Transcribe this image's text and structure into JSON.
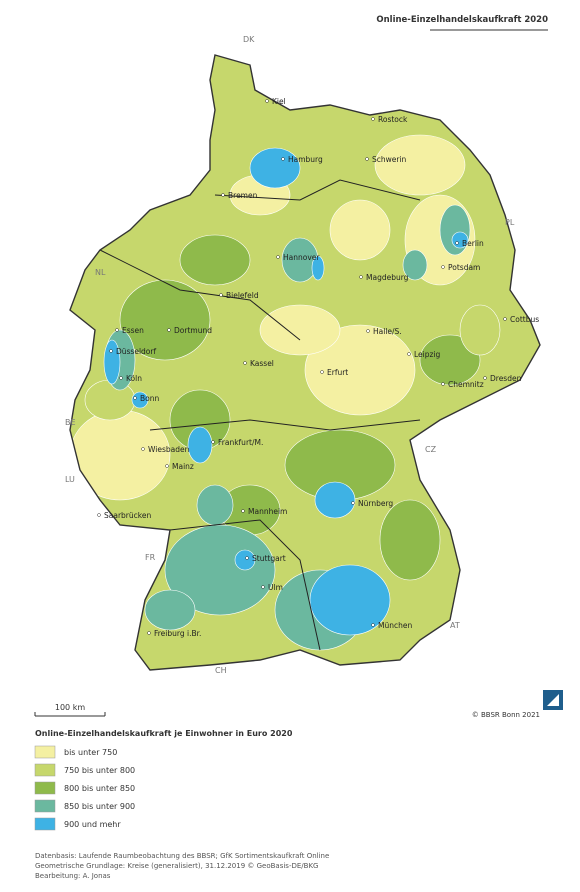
{
  "header": {
    "title": "Online-Einzelhandelskaufkraft 2020"
  },
  "map": {
    "cities": [
      "Kiel",
      "Rostock",
      "Hamburg",
      "Schwerin",
      "Bremen",
      "Berlin",
      "Hannover",
      "Potsdam",
      "Magdeburg",
      "Bielefeld",
      "Cottbus",
      "Essen",
      "Dortmund",
      "Halle/S.",
      "Düsseldorf",
      "Leipzig",
      "Kassel",
      "Erfurt",
      "Köln",
      "Chemnitz",
      "Dresden",
      "Bonn",
      "Frankfurt/M.",
      "Wiesbaden",
      "Mainz",
      "Nürnberg",
      "Saarbrücken",
      "Mannheim",
      "Stuttgart",
      "Ulm",
      "München",
      "Freiburg i.Br."
    ],
    "countries": [
      "DK",
      "PL",
      "NL",
      "BE",
      "LU",
      "CZ",
      "FR",
      "AT",
      "CH"
    ],
    "scale": "100 km",
    "copyright": "© BBSR Bonn 2021"
  },
  "legend": {
    "title": "Online-Einzelhandelskaufkraft je Einwohner in Euro 2020",
    "items": [
      {
        "label": "bis unter 750",
        "color": "#f4f0a2"
      },
      {
        "label": "750 bis unter 800",
        "color": "#c6d76c"
      },
      {
        "label": "800 bis unter 850",
        "color": "#8fba4b"
      },
      {
        "label": "850 bis unter 900",
        "color": "#6bb89f"
      },
      {
        "label": "900 und mehr",
        "color": "#3eb2e4"
      }
    ]
  },
  "footer": {
    "lines": [
      "Datenbasis: Laufende Raumbeobachtung des BBSR; GfK Sortimentskaufkraft Online",
      "Geometrische Grundlage: Kreise (generalisiert), 31.12.2019 © GeoBasis-DE/BKG",
      "Bearbeitung: A. Jonas"
    ]
  }
}
